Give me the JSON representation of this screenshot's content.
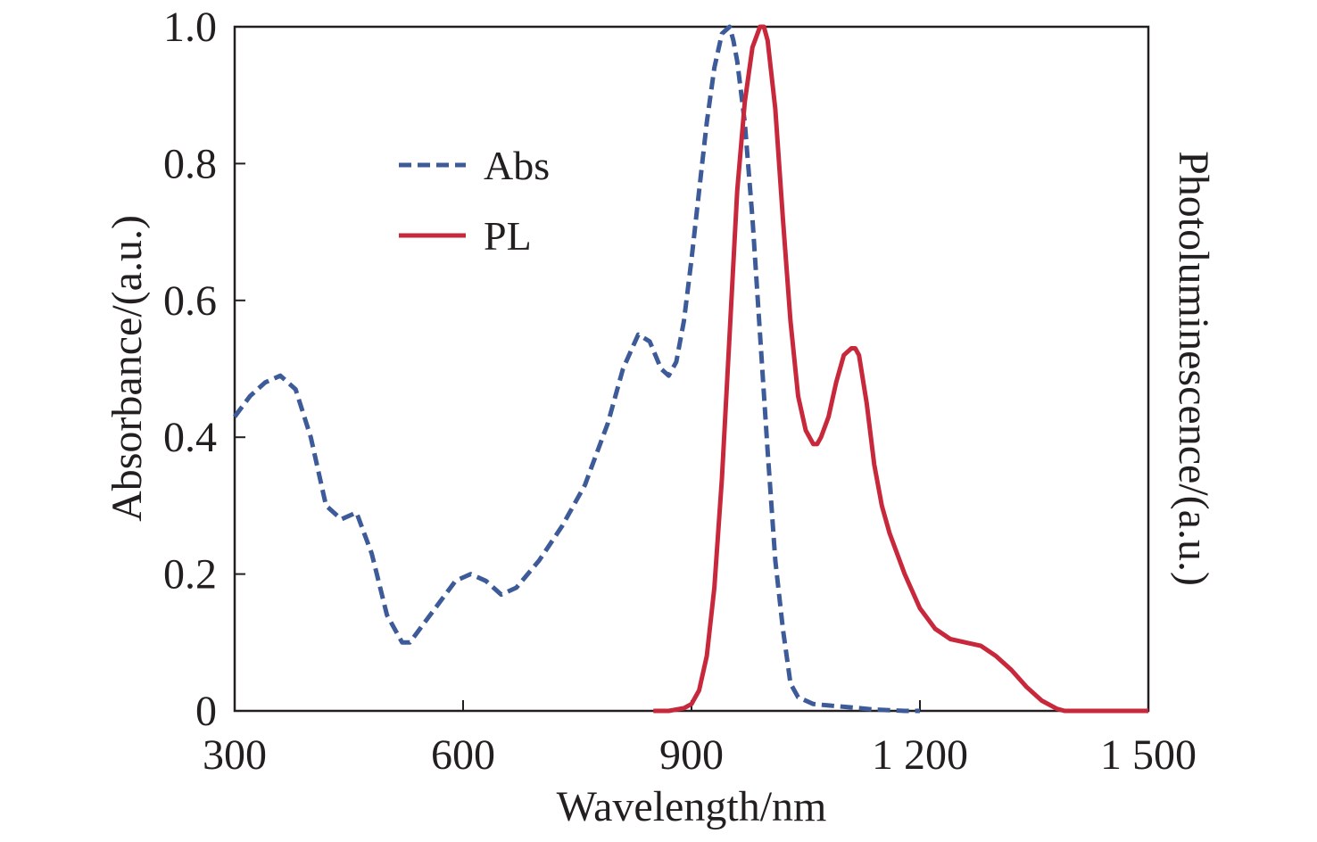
{
  "chart_data": {
    "type": "line",
    "title": "",
    "xlabel": "Wavelength/nm",
    "ylabel_left": "Absorbance/(a.u.)",
    "ylabel_right": "Photoluminescence/(a.u.)",
    "xlim": [
      300,
      1500
    ],
    "ylim": [
      0,
      1.0
    ],
    "x_ticks": [
      300,
      600,
      900,
      1200,
      1500
    ],
    "x_tick_labels": [
      "300",
      "600",
      "900",
      "1 200",
      "1 500"
    ],
    "y_ticks": [
      0,
      0.2,
      0.4,
      0.6,
      0.8,
      1.0
    ],
    "y_tick_labels": [
      "0",
      "0.2",
      "0.4",
      "0.6",
      "0.8",
      "1.0"
    ],
    "grid": false,
    "legend_position": "upper-left",
    "series": [
      {
        "name": "Abs",
        "style": "dashed",
        "color": "#3d5a99",
        "x": [
          300,
          320,
          340,
          360,
          380,
          400,
          420,
          440,
          460,
          480,
          500,
          520,
          530,
          550,
          570,
          590,
          610,
          630,
          650,
          670,
          700,
          730,
          760,
          790,
          810,
          830,
          845,
          860,
          870,
          880,
          890,
          900,
          910,
          920,
          930,
          940,
          950,
          955,
          960,
          970,
          980,
          990,
          1000,
          1010,
          1020,
          1030,
          1040,
          1060,
          1080,
          1100,
          1120,
          1140,
          1160,
          1180,
          1200
        ],
        "y": [
          0.43,
          0.46,
          0.48,
          0.49,
          0.47,
          0.4,
          0.3,
          0.28,
          0.29,
          0.23,
          0.14,
          0.1,
          0.1,
          0.13,
          0.16,
          0.19,
          0.2,
          0.19,
          0.17,
          0.18,
          0.22,
          0.27,
          0.33,
          0.42,
          0.5,
          0.55,
          0.54,
          0.5,
          0.49,
          0.51,
          0.57,
          0.66,
          0.76,
          0.86,
          0.94,
          0.99,
          1.0,
          0.98,
          0.95,
          0.86,
          0.72,
          0.55,
          0.38,
          0.22,
          0.12,
          0.04,
          0.02,
          0.01,
          0.008,
          0.006,
          0.004,
          0.002,
          0.001,
          0.0,
          0.0
        ]
      },
      {
        "name": "PL",
        "style": "solid",
        "color": "#c8283c",
        "x": [
          850,
          870,
          890,
          900,
          910,
          920,
          930,
          940,
          950,
          960,
          970,
          980,
          990,
          995,
          1000,
          1010,
          1020,
          1030,
          1040,
          1050,
          1060,
          1065,
          1070,
          1080,
          1090,
          1100,
          1110,
          1115,
          1120,
          1130,
          1140,
          1150,
          1160,
          1180,
          1200,
          1220,
          1240,
          1260,
          1280,
          1300,
          1320,
          1340,
          1360,
          1380,
          1390,
          1420,
          1460,
          1500
        ],
        "y": [
          0.0,
          0.0,
          0.004,
          0.01,
          0.03,
          0.08,
          0.18,
          0.34,
          0.55,
          0.76,
          0.89,
          0.97,
          1.0,
          1.0,
          0.98,
          0.88,
          0.72,
          0.57,
          0.46,
          0.41,
          0.39,
          0.39,
          0.4,
          0.43,
          0.48,
          0.52,
          0.53,
          0.53,
          0.52,
          0.45,
          0.36,
          0.3,
          0.26,
          0.2,
          0.15,
          0.12,
          0.105,
          0.1,
          0.095,
          0.08,
          0.06,
          0.035,
          0.015,
          0.003,
          0.0,
          0.0,
          0.0,
          0.0
        ]
      }
    ]
  }
}
